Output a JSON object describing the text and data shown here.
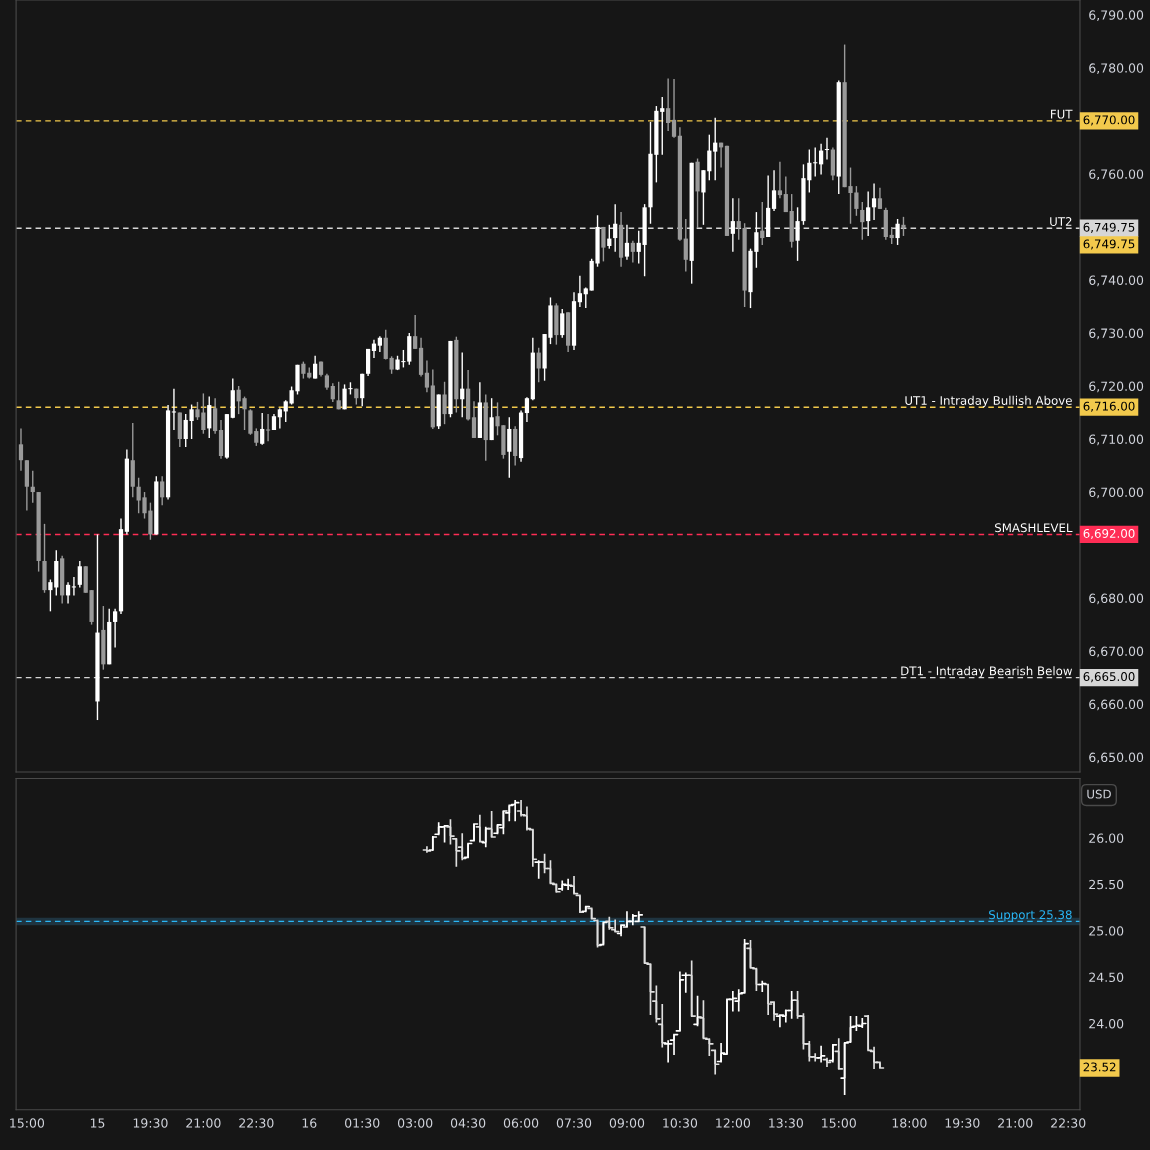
{
  "chart_data": [
    {
      "type": "candlestick",
      "colors": [
        "#9a9a9a",
        "#9a9a9a",
        "#9a9a9a",
        "#9a9a9a",
        "#9a9a9a",
        "#ffffff",
        "#ffffff",
        "#9a9a9a",
        "#ffffff",
        "#ffffff",
        "#ffffff",
        "#9a9a9a",
        "#9a9a9a",
        "#ffffff",
        "#9a9a9a",
        "#ffffff",
        "#ffffff",
        "#ffffff",
        "#ffffff",
        "#9a9a9a",
        "#9a9a9a",
        "#9a9a9a",
        "#9a9a9a",
        "#ffffff",
        "#9a9a9a",
        "#ffffff",
        "#ffffff",
        "#9a9a9a",
        "#ffffff",
        "#ffffff",
        "#9a9a9a",
        "#9a9a9a",
        "#ffffff",
        "#9a9a9a",
        "#9a9a9a",
        "#ffffff",
        "#ffffff",
        "#9a9a9a",
        "#9a9a9a",
        "#9a9a9a",
        "#9a9a9a",
        "#ffffff",
        "#9a9a9a",
        "#ffffff",
        "#ffffff",
        "#ffffff",
        "#ffffff",
        "#ffffff",
        "#9a9a9a",
        "#9a9a9a",
        "#ffffff",
        "#9a9a9a",
        "#9a9a9a",
        "#9a9a9a",
        "#9a9a9a",
        "#ffffff",
        "#ffffff",
        "#9a9a9a",
        "#ffffff",
        "#ffffff",
        "#ffffff",
        "#ffffff",
        "#9a9a9a",
        "#9a9a9a",
        "#ffffff",
        "#ffffff",
        "#ffffff",
        "#9a9a9a",
        "#9a9a9a",
        "#9a9a9a",
        "#9a9a9a",
        "#ffffff",
        "#9a9a9a",
        "#ffffff",
        "#9a9a9a",
        "#ffffff",
        "#9a9a9a",
        "#9a9a9a",
        "#ffffff",
        "#9a9a9a",
        "#ffffff",
        "#9a9a9a",
        "#9a9a9a",
        "#ffffff",
        "#9a9a9a",
        "#ffffff",
        "#ffffff",
        "#ffffff",
        "#9a9a9a",
        "#ffffff",
        "#ffffff",
        "#9a9a9a",
        "#ffffff",
        "#9a9a9a",
        "#ffffff",
        "#ffffff",
        "#ffffff",
        "#ffffff",
        "#ffffff",
        "#9a9a9a",
        "#ffffff",
        "#ffffff",
        "#9a9a9a",
        "#ffffff",
        "#9a9a9a",
        "#ffffff",
        "#ffffff",
        "#ffffff",
        "#ffffff",
        "#ffffff",
        "#9a9a9a",
        "#9a9a9a",
        "#9a9a9a",
        "#9a9a9a",
        "#ffffff",
        "#9a9a9a",
        "#ffffff",
        "#ffffff",
        "#ffffff",
        "#9a9a9a",
        "#9a9a9a",
        "#ffffff",
        "#9a9a9a",
        "#9a9a9a",
        "#ffffff",
        "#ffffff",
        "#9a9a9a",
        "#ffffff",
        "#ffffff",
        "#9a9a9a",
        "#9a9a9a",
        "#9a9a9a",
        "#ffffff",
        "#ffffff",
        "#ffffff",
        "#ffffff",
        "#ffffff",
        "#ffffff",
        "#9a9a9a",
        "#ffffff",
        "#9a9a9a",
        "#9a9a9a",
        "#9a9a9a",
        "#9a9a9a",
        "#ffffff",
        "#ffffff",
        "#9a9a9a",
        "#9a9a9a",
        "#9a9a9a",
        "#ffffff",
        "#9a9a9a",
        null,
        null,
        null,
        null,
        null,
        null,
        null,
        null,
        null,
        null,
        null,
        null,
        null,
        null,
        null,
        null,
        null,
        null,
        null,
        null,
        null,
        null,
        null,
        null,
        null,
        null,
        null,
        null,
        null
      ],
      "ohlc": [
        [
          6709,
          6712,
          6704,
          6706
        ],
        [
          6706,
          6706,
          6696.5,
          6701
        ],
        [
          6701,
          6704,
          6698,
          6700
        ],
        [
          6700,
          6700,
          6685,
          6687
        ],
        [
          6687,
          6694,
          6681,
          6681.5
        ],
        [
          6681.5,
          6683.5,
          6677.5,
          6683
        ],
        [
          6682,
          6689,
          6680.5,
          6687
        ],
        [
          6687.5,
          6688,
          6679,
          6680.5
        ],
        [
          6680.5,
          6683,
          6679,
          6682.5
        ],
        [
          6682,
          6684,
          6680.5,
          6682.2
        ],
        [
          6682.5,
          6687,
          6682,
          6686
        ],
        [
          6686,
          6686,
          6681,
          6681
        ],
        [
          6681.5,
          6681.5,
          6675,
          6675.5
        ],
        [
          6660.5,
          6692,
          6657,
          6673.5
        ],
        [
          6674,
          6678.5,
          6666.5,
          6667.5
        ],
        [
          6667.5,
          6678,
          6667.5,
          6675.5
        ],
        [
          6675.5,
          6678,
          6670.7,
          6677.5
        ],
        [
          6677.5,
          6695,
          6677,
          6693
        ],
        [
          6692.5,
          6708,
          6692,
          6706.3
        ],
        [
          6706,
          6713,
          6699,
          6701
        ],
        [
          6701,
          6702.7,
          6696,
          6698.4
        ],
        [
          6699,
          6700,
          6695,
          6696
        ],
        [
          6696.5,
          6698,
          6691,
          6692
        ],
        [
          6692,
          6703,
          6692,
          6702
        ],
        [
          6702,
          6703,
          6697.5,
          6699
        ],
        [
          6699,
          6716.4,
          6698.6,
          6715.4
        ],
        [
          6715,
          6719.5,
          6711.7,
          6715.2
        ],
        [
          6715,
          6715,
          6708.5,
          6710
        ],
        [
          6710,
          6714.7,
          6708.5,
          6713.6
        ],
        [
          6713.4,
          6716.5,
          6710,
          6715.6
        ],
        [
          6715.6,
          6717,
          6713.6,
          6714.1
        ],
        [
          6715,
          6718.6,
          6711,
          6711.7
        ],
        [
          6712,
          6718,
          6710.2,
          6716.4
        ],
        [
          6715.8,
          6717.7,
          6711,
          6711.5
        ],
        [
          6711.7,
          6713.6,
          6706.3,
          6706.8
        ],
        [
          6706.5,
          6714.7,
          6706.3,
          6714.7
        ],
        [
          6714,
          6721.4,
          6713.9,
          6719.2
        ],
        [
          6719.3,
          6720,
          6714.7,
          6717.1
        ],
        [
          6717.7,
          6718,
          6711.7,
          6715.6
        ],
        [
          6715.4,
          6715.6,
          6710.8,
          6711
        ],
        [
          6711.5,
          6712,
          6708.7,
          6709.3
        ],
        [
          6709.1,
          6714.9,
          6708.9,
          6711.9
        ],
        [
          6711.8,
          6714.7,
          6709.6,
          6711.6
        ],
        [
          6711.7,
          6714.7,
          6711.7,
          6714.3
        ],
        [
          6714.1,
          6715.8,
          6712,
          6715.6
        ],
        [
          6715.2,
          6717.3,
          6713.2,
          6717.1
        ],
        [
          6716.7,
          6719.9,
          6716.5,
          6719.2
        ],
        [
          6719,
          6724,
          6718.4,
          6724
        ],
        [
          6724.2,
          6724.6,
          6721.4,
          6722.3
        ],
        [
          6722.5,
          6723.5,
          6721.4,
          6721.6
        ],
        [
          6721.4,
          6725.7,
          6721.4,
          6724.2
        ],
        [
          6724.6,
          6724.6,
          6721.8,
          6722.1
        ],
        [
          6722,
          6722.3,
          6719.3,
          6719.7
        ],
        [
          6720,
          6720.5,
          6717,
          6717.5
        ],
        [
          6717.3,
          6720.8,
          6715.6,
          6715.6
        ],
        [
          6715.6,
          6720.3,
          6715.6,
          6719.5
        ],
        [
          6719.4,
          6720.7,
          6718.4,
          6719.6
        ],
        [
          6719.5,
          6719.5,
          6716.5,
          6717.7
        ],
        [
          6717.7,
          6722.3,
          6716.2,
          6722.3
        ],
        [
          6722.3,
          6727,
          6721.9,
          6727
        ],
        [
          6726.6,
          6728.7,
          6725.3,
          6728
        ],
        [
          6727.6,
          6729.4,
          6726.4,
          6729.1
        ],
        [
          6729.1,
          6730.6,
          6725,
          6725.1
        ],
        [
          6725.3,
          6725.6,
          6722.3,
          6723.1
        ],
        [
          6723.1,
          6725.7,
          6723,
          6725
        ],
        [
          6724.5,
          6726.8,
          6723.5,
          6724.7
        ],
        [
          6724.6,
          6730,
          6724,
          6729.4
        ],
        [
          6729.4,
          6733.4,
          6727,
          6727
        ],
        [
          6727.2,
          6729.1,
          6721.8,
          6722.1
        ],
        [
          6722.5,
          6724.8,
          6718.8,
          6719.7
        ],
        [
          6720.1,
          6723.1,
          6711.9,
          6712.2
        ],
        [
          6712.4,
          6718.4,
          6711.9,
          6718.4
        ],
        [
          6718.4,
          6720.8,
          6712.8,
          6714.7
        ],
        [
          6714.7,
          6728.5,
          6714.1,
          6728.5
        ],
        [
          6728.7,
          6729.3,
          6715,
          6717.5
        ],
        [
          6717.5,
          6726.3,
          6714.1,
          6719.5
        ],
        [
          6719.5,
          6723,
          6713.5,
          6713.7
        ],
        [
          6714.1,
          6717.1,
          6710.2,
          6710.2
        ],
        [
          6710.2,
          6720.7,
          6710.2,
          6716.9
        ],
        [
          6716.9,
          6718.4,
          6705.9,
          6709.8
        ],
        [
          6709.8,
          6717.7,
          6709.8,
          6714.1
        ],
        [
          6714.3,
          6716.9,
          6710.7,
          6712.4
        ],
        [
          6712.6,
          6712.6,
          6706.3,
          6707
        ],
        [
          6707.6,
          6714.1,
          6702.7,
          6711.9
        ],
        [
          6711.9,
          6712.4,
          6705,
          6706.8
        ],
        [
          6706.4,
          6715.4,
          6705.7,
          6715
        ],
        [
          6714.9,
          6717.9,
          6713.2,
          6717.7
        ],
        [
          6717.5,
          6729.1,
          6717.3,
          6726.3
        ],
        [
          6726.3,
          6727.2,
          6720.7,
          6723.3
        ],
        [
          6723.3,
          6729.8,
          6721,
          6729.8
        ],
        [
          6729.1,
          6736.7,
          6727.9,
          6735.2
        ],
        [
          6735.2,
          6735.6,
          6727.8,
          6729.6
        ],
        [
          6729.6,
          6734.5,
          6729.1,
          6733.7
        ],
        [
          6733.9,
          6733.9,
          6726.4,
          6727.6
        ],
        [
          6727.6,
          6737.7,
          6726.8,
          6736
        ],
        [
          6735.8,
          6740.8,
          6734.9,
          6737.5
        ],
        [
          6737.3,
          6738.6,
          6734.7,
          6738.4
        ],
        [
          6738,
          6744,
          6738,
          6743.6
        ],
        [
          6743.1,
          6752.2,
          6742.5,
          6750
        ],
        [
          6750,
          6750,
          6743.5,
          6746.1
        ],
        [
          6746.4,
          6750.4,
          6745.9,
          6747.8
        ],
        [
          6747.9,
          6754.3,
          6745.3,
          6750.6
        ],
        [
          6750.4,
          6752.8,
          6742.5,
          6744.2
        ],
        [
          6744.4,
          6750.4,
          6743.8,
          6747
        ],
        [
          6747,
          6747.4,
          6743.3,
          6745.3
        ],
        [
          6745.3,
          6749.3,
          6743.1,
          6747
        ],
        [
          6746.6,
          6754.3,
          6740.7,
          6753.7
        ],
        [
          6753.7,
          6769.8,
          6750.6,
          6763.8
        ],
        [
          6763.6,
          6772.8,
          6758.4,
          6771.9
        ],
        [
          6771.7,
          6774.5,
          6763.6,
          6772.4
        ],
        [
          6772.4,
          6778,
          6768.1,
          6769.6
        ],
        [
          6770.2,
          6777.9,
          6766.8,
          6767
        ],
        [
          6767.2,
          6768.8,
          6747.4,
          6747.6
        ],
        [
          6747.8,
          6751.5,
          6741.6,
          6743.8
        ],
        [
          6743.6,
          6762.1,
          6739.3,
          6762.1
        ],
        [
          6762.3,
          6762.9,
          6749.8,
          6756.7
        ],
        [
          6756.5,
          6760.7,
          6750.4,
          6760.7
        ],
        [
          6760.5,
          6767.4,
          6758.8,
          6764.4
        ],
        [
          6764.2,
          6770.6,
          6758.8,
          6765.9
        ],
        [
          6765.9,
          6765.9,
          6761.2,
          6765
        ],
        [
          6765.3,
          6765.3,
          6748.3,
          6748.3
        ],
        [
          6748.7,
          6755.4,
          6745.3,
          6751.1
        ],
        [
          6751.1,
          6755.4,
          6747.6,
          6749.8
        ],
        [
          6749.8,
          6750.7,
          6734.9,
          6738
        ],
        [
          6737.7,
          6745.9,
          6734.7,
          6745.5
        ],
        [
          6745.3,
          6752.8,
          6742.3,
          6749
        ],
        [
          6749.3,
          6754.7,
          6746.6,
          6747.9
        ],
        [
          6748.1,
          6759.7,
          6748.1,
          6753.6
        ],
        [
          6753.4,
          6760.7,
          6753,
          6756.9
        ],
        [
          6756.9,
          6762.3,
          6755.4,
          6756
        ],
        [
          6756.2,
          6759.5,
          6752.8,
          6752.8
        ],
        [
          6753,
          6756.2,
          6746.1,
          6747.2
        ],
        [
          6747.4,
          6753.7,
          6743.6,
          6751.1
        ],
        [
          6751.1,
          6761.8,
          6750.4,
          6759.2
        ],
        [
          6758.8,
          6764.6,
          6756.5,
          6762.1
        ],
        [
          6762,
          6765,
          6759.5,
          6762.2
        ],
        [
          6761.8,
          6765.7,
          6759.9,
          6764.4
        ],
        [
          6764.5,
          6766.8,
          6762.7,
          6764.7
        ],
        [
          6764.6,
          6765,
          6758.8,
          6759.7
        ],
        [
          6759.5,
          6777.6,
          6756.2,
          6777.3
        ],
        [
          6777.3,
          6784.4,
          6757.5,
          6757.5
        ],
        [
          6757.7,
          6761.2,
          6750.6,
          6756.4
        ],
        [
          6756.5,
          6757.7,
          6752.1,
          6753.4
        ],
        [
          6753.2,
          6754.7,
          6747.6,
          6750.9
        ],
        [
          6751.1,
          6756.7,
          6748.3,
          6753.7
        ],
        [
          6753.7,
          6758.2,
          6751.3,
          6755.4
        ],
        [
          6755.4,
          6757.4,
          6753.4,
          6753.4
        ],
        [
          6753.2,
          6753.6,
          6747.6,
          6748.1
        ],
        [
          6748.5,
          6750,
          6746.8,
          6747.9
        ],
        [
          6747.9,
          6751.5,
          6746.6,
          6750.6
        ],
        [
          6750.4,
          6751.9,
          6748.3,
          6749.75
        ],
        null,
        null,
        null,
        null,
        null,
        null,
        null,
        null,
        null,
        null,
        null,
        null,
        null,
        null,
        null,
        null,
        null,
        null,
        null,
        null,
        null,
        null,
        null,
        null,
        null,
        null,
        null,
        null,
        null
      ],
      "ylim": [
        6647.2,
        6792.8
      ],
      "yticks": [
        {
          "value": 6650,
          "label": "6,650.00"
        },
        {
          "value": 6660,
          "label": "6,660.00"
        },
        {
          "value": 6670,
          "label": "6,670.00"
        },
        {
          "value": 6680,
          "label": "6,680.00"
        },
        {
          "value": 6700,
          "label": "6,700.00"
        },
        {
          "value": 6710,
          "label": "6,710.00"
        },
        {
          "value": 6720,
          "label": "6,720.00"
        },
        {
          "value": 6730,
          "label": "6,730.00"
        },
        {
          "value": 6740,
          "label": "6,740.00"
        },
        {
          "value": 6760,
          "label": "6,760.00"
        },
        {
          "value": 6780,
          "label": "6,780.00"
        },
        {
          "value": 6790,
          "label": "6,790.00"
        }
      ],
      "tick_labels": "y",
      "ref_lines": [
        {
          "axis": "y",
          "value": 6770,
          "label": "FUT",
          "color": "#f2c94c",
          "line_style": "dashed"
        },
        {
          "axis": "y",
          "value": 6749.75,
          "label": "UT2",
          "color": "#d6d6d6",
          "line_style": "dashed"
        },
        {
          "axis": "y",
          "value": 6716,
          "label": "UT1 - Intraday Bullish Above",
          "color": "#f2c94c",
          "line_style": "dashed"
        },
        {
          "axis": "y",
          "value": 6692,
          "label": "SMASHLEVEL",
          "color": "#ff2d55",
          "line_style": "dashed"
        },
        {
          "axis": "y",
          "value": 6665,
          "label": "DT1 - Intraday Bearish Below",
          "color": "#d6d6d6",
          "line_style": "dashed"
        }
      ],
      "annotations": [
        "6,770.00",
        "6,749.75",
        "6,716.00",
        "6,692.00",
        "6,665.00",
        "6,749.75"
      ]
    },
    {
      "type": "candlestick",
      "categories": [
        null,
        "15:00",
        null,
        null,
        null,
        null,
        null,
        null,
        null,
        null,
        null,
        null,
        null,
        "15",
        null,
        null,
        null,
        null,
        null,
        null,
        null,
        null,
        "19:30",
        null,
        null,
        null,
        null,
        null,
        null,
        null,
        null,
        "21:00",
        null,
        null,
        null,
        null,
        null,
        null,
        null,
        null,
        "22:30",
        null,
        null,
        null,
        null,
        null,
        null,
        null,
        null,
        "16",
        null,
        null,
        null,
        null,
        null,
        null,
        null,
        null,
        "01:30",
        null,
        null,
        null,
        null,
        null,
        null,
        null,
        null,
        "03:00",
        null,
        null,
        null,
        null,
        null,
        null,
        null,
        null,
        "04:30",
        null,
        null,
        null,
        null,
        null,
        null,
        null,
        null,
        "06:00",
        null,
        null,
        null,
        null,
        null,
        null,
        null,
        null,
        "07:30",
        null,
        null,
        null,
        null,
        null,
        null,
        null,
        null,
        "09:00",
        null,
        null,
        null,
        null,
        null,
        null,
        null,
        null,
        "10:30",
        null,
        null,
        null,
        null,
        null,
        null,
        null,
        null,
        "12:00",
        null,
        null,
        null,
        null,
        null,
        null,
        null,
        null,
        "13:30",
        null,
        null,
        null,
        null,
        null,
        null,
        null,
        null,
        "15:00",
        null,
        null,
        null,
        null,
        null,
        null,
        null,
        null,
        null,
        null,
        null,
        "18:00",
        null,
        null,
        null,
        null,
        null,
        null,
        null,
        null,
        "19:30",
        null,
        null,
        null,
        null,
        null,
        null,
        null,
        null,
        "21:00",
        null,
        null,
        null,
        null,
        null,
        null,
        null,
        null,
        "22:30",
        null
      ],
      "colors": [
        null,
        null,
        null,
        null,
        null,
        null,
        null,
        null,
        null,
        null,
        null,
        null,
        null,
        null,
        null,
        null,
        null,
        null,
        null,
        null,
        null,
        null,
        null,
        null,
        null,
        null,
        null,
        null,
        null,
        null,
        null,
        null,
        null,
        null,
        null,
        null,
        null,
        null,
        null,
        null,
        null,
        null,
        null,
        null,
        null,
        null,
        null,
        null,
        null,
        null,
        null,
        null,
        null,
        null,
        null,
        null,
        null,
        null,
        null,
        null,
        null,
        null,
        null,
        null,
        null,
        null,
        null,
        null,
        null,
        "#dedede",
        "#ffffff",
        "#ffffff",
        "#ffffff",
        "#dedede",
        "#dedede",
        "#dedede",
        "#ffffff",
        "#ffffff",
        "#dedede",
        "#ffffff",
        "#dedede",
        "#ffffff",
        "#ffffff",
        "#ffffff",
        "#ffffff",
        "#dedede",
        "#dedede",
        "#dedede",
        "#ffffff",
        "#dedede",
        "#dedede",
        "#dedede",
        "#ffffff",
        "#ffffff",
        "#dedede",
        "#dedede",
        "#ffffff",
        "#dedede",
        "#dedede",
        "#ffffff",
        "#dedede",
        "#dedede",
        "#ffffff",
        "#ffffff",
        "#ffffff",
        "#ffffff",
        "#dedede",
        "#dedede",
        "#dedede",
        "#dedede",
        "#ffffff",
        "#ffffff",
        "#ffffff",
        "#ffffff",
        "#dedede",
        "#ffffff",
        "#dedede",
        "#dedede",
        "#dedede",
        "#ffffff",
        "#ffffff",
        "#ffffff",
        "#ffffff",
        "#ffffff",
        "#dedede",
        "#dedede",
        "#ffffff",
        "#dedede",
        "#dedede",
        "#ffffff",
        "#ffffff",
        "#ffffff",
        "#dedede",
        "#dedede",
        "#dedede",
        "#dedede",
        "#ffffff",
        "#dedede",
        "#ffffff",
        "#dedede",
        "#ffffff",
        "#ffffff",
        "#ffffff",
        "#ffffff",
        "#dedede",
        "#dedede",
        "#dedede",
        null,
        null,
        null,
        null,
        null,
        null,
        null,
        null,
        null,
        null,
        null,
        null,
        null,
        null,
        null,
        null,
        null,
        null,
        null,
        null,
        null,
        null,
        null,
        null,
        null,
        null,
        null,
        null,
        null,
        null,
        null,
        null,
        null
      ],
      "ohlc": [
        null,
        null,
        null,
        null,
        null,
        null,
        null,
        null,
        null,
        null,
        null,
        null,
        null,
        null,
        null,
        null,
        null,
        null,
        null,
        null,
        null,
        null,
        null,
        null,
        null,
        null,
        null,
        null,
        null,
        null,
        null,
        null,
        null,
        null,
        null,
        null,
        null,
        null,
        null,
        null,
        null,
        null,
        null,
        null,
        null,
        null,
        null,
        null,
        null,
        null,
        null,
        null,
        null,
        null,
        null,
        null,
        null,
        null,
        null,
        null,
        null,
        null,
        null,
        null,
        null,
        null,
        null,
        null,
        null,
        [
          25.87,
          25.91,
          25.84,
          25.86
        ],
        [
          25.87,
          26.02,
          25.86,
          26.01
        ],
        [
          26.04,
          26.17,
          26.03,
          26.12
        ],
        [
          26.12,
          26.14,
          25.95,
          26.13
        ],
        [
          26.12,
          26.2,
          25.93,
          26.02
        ],
        [
          25.99,
          26.0,
          25.69,
          25.86
        ],
        [
          25.9,
          26.05,
          25.76,
          25.78
        ],
        [
          25.79,
          25.94,
          25.79,
          25.94
        ],
        [
          25.97,
          26.15,
          25.97,
          26.15
        ],
        [
          26.12,
          26.25,
          25.95,
          25.96
        ],
        [
          25.95,
          26.12,
          25.9,
          26.1
        ],
        [
          26.1,
          26.29,
          26.01,
          26.01
        ],
        [
          26.05,
          26.15,
          26.04,
          26.14
        ],
        [
          26.11,
          26.29,
          26.04,
          26.29
        ],
        [
          26.27,
          26.36,
          26.18,
          26.35
        ],
        [
          26.36,
          26.41,
          26.18,
          26.38
        ],
        [
          26.29,
          26.41,
          26.23,
          26.25
        ],
        [
          26.24,
          26.34,
          26.08,
          26.1
        ],
        [
          26.09,
          26.09,
          25.69,
          25.77
        ],
        [
          25.74,
          25.76,
          25.56,
          25.74
        ],
        [
          25.74,
          25.83,
          25.62,
          25.67
        ],
        [
          25.67,
          25.76,
          25.5,
          25.51
        ],
        [
          25.5,
          25.5,
          25.41,
          25.42
        ],
        [
          25.45,
          25.54,
          25.43,
          25.5
        ],
        [
          25.49,
          25.56,
          25.44,
          25.49
        ],
        [
          25.48,
          25.59,
          25.4,
          25.4
        ],
        [
          25.38,
          25.39,
          25.2,
          25.2
        ],
        [
          25.21,
          25.27,
          25.2,
          25.26
        ],
        [
          25.24,
          25.25,
          25.12,
          25.13
        ],
        [
          25.11,
          25.12,
          24.82,
          24.84
        ],
        [
          24.85,
          25.1,
          24.84,
          25.09
        ],
        [
          25.1,
          25.15,
          25.01,
          25.03
        ],
        [
          25.01,
          25.12,
          24.98,
          24.99
        ],
        [
          24.97,
          25.06,
          24.94,
          25.06
        ],
        [
          25.04,
          25.21,
          25.04,
          25.1
        ],
        [
          25.1,
          25.18,
          25.06,
          25.16
        ],
        [
          25.1,
          25.21,
          25.1,
          25.17
        ],
        [
          25.04,
          25.04,
          24.65,
          24.65
        ],
        [
          24.64,
          24.64,
          24.09,
          24.34
        ],
        [
          24.24,
          24.41,
          24.01,
          24.05
        ],
        [
          23.99,
          24.21,
          23.74,
          23.79
        ],
        [
          23.78,
          23.82,
          23.58,
          23.78
        ],
        [
          23.82,
          23.89,
          23.66,
          23.88
        ],
        [
          23.92,
          24.56,
          23.92,
          24.47
        ],
        [
          24.52,
          24.55,
          24.33,
          24.52
        ],
        [
          24.52,
          24.68,
          24.07,
          24.08
        ],
        [
          23.99,
          24.3,
          23.97,
          24.07
        ],
        [
          24.06,
          24.25,
          23.84,
          23.84
        ],
        [
          23.83,
          23.84,
          23.65,
          23.78
        ],
        [
          23.71,
          23.72,
          23.45,
          23.56
        ],
        [
          23.59,
          23.79,
          23.58,
          23.68
        ],
        [
          23.67,
          24.26,
          23.66,
          24.26
        ],
        [
          24.26,
          24.35,
          24.13,
          24.27
        ],
        [
          24.24,
          24.37,
          24.13,
          24.32
        ],
        [
          24.33,
          24.91,
          24.32,
          24.86
        ],
        [
          24.81,
          24.9,
          24.6,
          24.6
        ],
        [
          24.59,
          24.6,
          24.35,
          24.42
        ],
        [
          24.42,
          24.46,
          24.34,
          24.43
        ],
        [
          24.42,
          24.42,
          24.09,
          24.21
        ],
        [
          24.23,
          24.24,
          24.03,
          24.1
        ],
        [
          24.08,
          24.1,
          23.96,
          24.09
        ],
        [
          24.08,
          24.15,
          24.01,
          24.14
        ],
        [
          24.14,
          24.35,
          24.05,
          24.25
        ],
        [
          24.25,
          24.35,
          24.05,
          24.08
        ],
        [
          24.08,
          24.11,
          23.72,
          23.78
        ],
        [
          23.78,
          23.81,
          23.59,
          23.64
        ],
        [
          23.64,
          23.68,
          23.59,
          23.63
        ],
        [
          23.63,
          23.76,
          23.58,
          23.65
        ],
        [
          23.61,
          23.63,
          23.53,
          23.58
        ],
        [
          23.6,
          23.78,
          23.58,
          23.77
        ],
        [
          23.7,
          23.84,
          23.51,
          23.51
        ],
        [
          23.41,
          23.8,
          23.23,
          23.79
        ],
        [
          23.8,
          24.08,
          23.79,
          23.96
        ],
        [
          23.97,
          24.08,
          23.92,
          23.98
        ],
        [
          23.97,
          24.06,
          23.95,
          24.0
        ],
        [
          24.08,
          24.09,
          23.7,
          23.71
        ],
        [
          23.7,
          23.75,
          23.51,
          23.58
        ],
        [
          23.58,
          23.59,
          23.52,
          23.52
        ],
        null,
        null,
        null,
        null,
        null,
        null,
        null,
        null,
        null,
        null,
        null,
        null,
        null,
        null,
        null,
        null,
        null,
        null,
        null,
        null,
        null,
        null,
        null,
        null,
        null,
        null,
        null,
        null,
        null,
        null,
        null,
        null,
        null
      ],
      "ylim": [
        23.07,
        26.64
      ],
      "ylabel": "USD",
      "line_style": "solid",
      "yticks": [
        {
          "value": 24,
          "label": "24.00"
        },
        {
          "value": 24.5,
          "label": "24.50"
        },
        {
          "value": 25,
          "label": "25.00"
        },
        {
          "value": 25.5,
          "label": "25.50"
        },
        {
          "value": 26,
          "label": "26.00"
        }
      ],
      "ref_lines": [
        {
          "axis": "y",
          "value": 25.1,
          "label": "Support 25.38",
          "color": "#29b6f6",
          "line_style": "dashed"
        }
      ],
      "bands": [
        {
          "axis": "y",
          "from": 25.06,
          "to": 25.14,
          "color": "#1f3440"
        }
      ],
      "annotations": [
        "23.52"
      ]
    }
  ]
}
